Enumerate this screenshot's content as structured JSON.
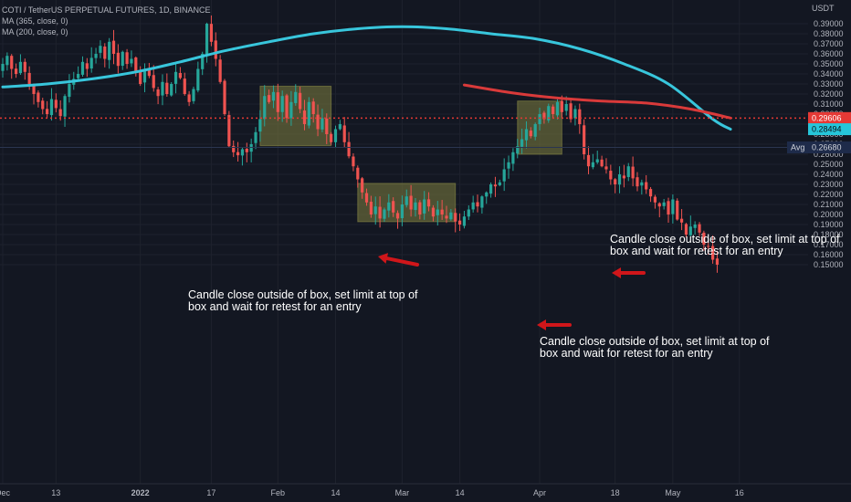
{
  "legend": {
    "symbol": "COTI / TetherUS PERPETUAL FUTURES, 1D, BINANCE",
    "ma1": "MA (365, close, 0)",
    "ma2": "MA (200, close, 0)"
  },
  "currency": "USDT",
  "annotations": [
    "Candle close outside of box, set limit at top of\nbox and wait for retest for an entry",
    "Candle close outside of box, set limit at top of\nbox and wait for retest for an entry",
    "Candle close outside of box, set limit at top of\nbox and wait for retest for an entry"
  ],
  "price_tags": {
    "red_line": {
      "label": "0.29606",
      "value": 0.29606,
      "color": "#e53935"
    },
    "avg": {
      "label": "Avg",
      "value_label": "0.26680",
      "value": 0.2668,
      "color": "#1e2b4a"
    },
    "ma_blue": {
      "label": "0.28494",
      "value": 0.28494,
      "color": "#26c6da"
    }
  },
  "colors": {
    "background": "#131722",
    "bull": "#26a69a",
    "bear": "#ef5350",
    "ma_blue": "#38c6dc",
    "ma_red": "#d93a3a",
    "box_fill": "#808040",
    "arrow": "#d0161a"
  },
  "chart_data": {
    "type": "candlestick",
    "title": "COTI / TetherUS PERPETUAL FUTURES, 1D, BINANCE",
    "ylabel": "USDT",
    "ylim": [
      0.15,
      0.395
    ],
    "y_ticks": [
      0.39,
      0.38,
      0.37,
      0.36,
      0.35,
      0.34,
      0.33,
      0.32,
      0.31,
      0.3,
      0.29,
      0.28,
      0.27,
      0.26,
      0.25,
      0.24,
      0.23,
      0.22,
      0.21,
      0.2,
      0.19,
      0.18,
      0.17,
      0.16,
      0.15
    ],
    "y_tick_labels": [
      "0.39000",
      "0.38000",
      "0.37000",
      "0.36000",
      "0.35000",
      "0.34000",
      "0.33000",
      "0.32000",
      "0.31000",
      "0.30000",
      "0.29000",
      "0.28000",
      "0.27000",
      "0.26000",
      "0.25000",
      "0.24000",
      "0.23000",
      "0.22000",
      "0.21000",
      "0.20000",
      "0.19000",
      "0.18000",
      "0.17000",
      "0.16000",
      "0.15000"
    ],
    "x_ticks": [
      {
        "label": "Dec",
        "day": 0,
        "bold": false
      },
      {
        "label": "13",
        "day": 12,
        "bold": false
      },
      {
        "label": "2022",
        "day": 31,
        "bold": true
      },
      {
        "label": "17",
        "day": 47,
        "bold": false
      },
      {
        "label": "Feb",
        "day": 62,
        "bold": false
      },
      {
        "label": "14",
        "day": 75,
        "bold": false
      },
      {
        "label": "Mar",
        "day": 90,
        "bold": false
      },
      {
        "label": "14",
        "day": 103,
        "bold": false
      },
      {
        "label": "Apr",
        "day": 121,
        "bold": false
      },
      {
        "label": "18",
        "day": 138,
        "bold": false
      },
      {
        "label": "May",
        "day": 151,
        "bold": false
      },
      {
        "label": "16",
        "day": 166,
        "bold": false
      }
    ],
    "candle_closes": [
      0.35,
      0.358,
      0.345,
      0.34,
      0.352,
      0.342,
      0.33,
      0.32,
      0.312,
      0.305,
      0.3,
      0.315,
      0.306,
      0.298,
      0.318,
      0.33,
      0.335,
      0.34,
      0.352,
      0.345,
      0.356,
      0.36,
      0.368,
      0.355,
      0.372,
      0.36,
      0.348,
      0.362,
      0.35,
      0.355,
      0.342,
      0.33,
      0.345,
      0.338,
      0.326,
      0.318,
      0.332,
      0.32,
      0.33,
      0.342,
      0.336,
      0.32,
      0.312,
      0.325,
      0.345,
      0.36,
      0.39,
      0.372,
      0.355,
      0.332,
      0.3,
      0.268,
      0.262,
      0.259,
      0.265,
      0.262,
      0.27,
      0.282,
      0.295,
      0.318,
      0.312,
      0.322,
      0.302,
      0.318,
      0.296,
      0.312,
      0.322,
      0.305,
      0.29,
      0.312,
      0.3,
      0.285,
      0.296,
      0.28,
      0.272,
      0.285,
      0.29,
      0.272,
      0.258,
      0.248,
      0.235,
      0.222,
      0.212,
      0.2,
      0.208,
      0.196,
      0.205,
      0.212,
      0.202,
      0.196,
      0.21,
      0.218,
      0.205,
      0.212,
      0.2,
      0.215,
      0.208,
      0.198,
      0.205,
      0.2,
      0.196,
      0.202,
      0.193,
      0.19,
      0.198,
      0.205,
      0.212,
      0.208,
      0.218,
      0.222,
      0.23,
      0.228,
      0.232,
      0.245,
      0.252,
      0.262,
      0.268,
      0.275,
      0.285,
      0.278,
      0.29,
      0.3,
      0.295,
      0.308,
      0.3,
      0.312,
      0.302,
      0.31,
      0.295,
      0.305,
      0.29,
      0.26,
      0.248,
      0.252,
      0.255,
      0.248,
      0.245,
      0.235,
      0.23,
      0.24,
      0.236,
      0.248,
      0.236,
      0.228,
      0.232,
      0.225,
      0.218,
      0.212,
      0.208,
      0.212,
      0.2,
      0.215,
      0.195,
      0.192,
      0.18,
      0.188,
      0.19,
      0.182,
      0.17,
      0.168,
      0.155,
      0.15
    ],
    "series": [
      {
        "name": "MA (365, close, 0)",
        "color": "#38c6dc",
        "x": [
          0,
          10,
          20,
          30,
          40,
          50,
          60,
          70,
          80,
          90,
          100,
          110,
          120,
          130,
          140,
          150,
          160,
          164
        ],
        "values": [
          0.327,
          0.33,
          0.335,
          0.342,
          0.352,
          0.363,
          0.372,
          0.38,
          0.385,
          0.387,
          0.385,
          0.38,
          0.375,
          0.365,
          0.35,
          0.33,
          0.295,
          0.2849
        ]
      },
      {
        "name": "MA (200, close, 0)",
        "color": "#d93a3a",
        "x": [
          104,
          115,
          125,
          135,
          145,
          155,
          164
        ],
        "values": [
          0.329,
          0.321,
          0.316,
          0.313,
          0.311,
          0.305,
          0.2961
        ]
      }
    ],
    "boxes": [
      {
        "x0": 58,
        "x1": 74,
        "top": 0.3278,
        "bottom": 0.2685
      },
      {
        "x0": 80,
        "x1": 102,
        "top": 0.231,
        "bottom": 0.1928
      },
      {
        "x0": 116,
        "x1": 126,
        "top": 0.313,
        "bottom": 0.26
      }
    ],
    "horizontal_lines": [
      {
        "value": 0.29606,
        "style": "dotted",
        "color": "#e53935"
      }
    ]
  }
}
